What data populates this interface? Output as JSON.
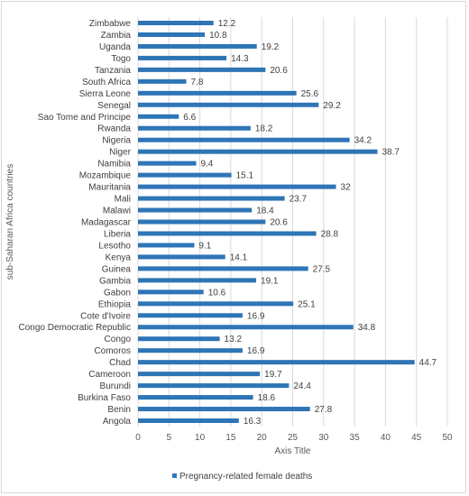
{
  "chart_data": {
    "type": "bar",
    "orientation": "horizontal",
    "categories": [
      "Zimbabwe",
      "Zambia",
      "Uganda",
      "Togo",
      "Tanzania",
      "South Africa",
      "Sierra Leone",
      "Senegal",
      "Sao Tome and Principe",
      "Rwanda",
      "Nigeria",
      "Niger",
      "Namibia",
      "Mozambique",
      "Mauritania",
      "Mali",
      "Malawi",
      "Madagascar",
      "Liberia",
      "Lesotho",
      "Kenya",
      "Guinea",
      "Gambia",
      "Gabon",
      "Ethiopia",
      "Cote d'Ivoire",
      "Congo Democratic Republic",
      "Congo",
      "Comoros",
      "Chad",
      "Cameroon",
      "Burundi",
      "Burkina Faso",
      "Benin",
      "Angola"
    ],
    "series": [
      {
        "name": "Pregnancy-related female deaths",
        "values": [
          12.2,
          10.8,
          19.2,
          14.3,
          20.6,
          7.8,
          25.6,
          29.2,
          6.6,
          18.2,
          34.2,
          38.7,
          9.4,
          15.1,
          32,
          23.7,
          18.4,
          20.6,
          28.8,
          9.1,
          14.1,
          27.5,
          19.1,
          10.6,
          25.1,
          16.9,
          34.8,
          13.2,
          16.9,
          44.7,
          19.7,
          24.4,
          18.6,
          27.8,
          16.3
        ],
        "color": "#2e75b6"
      }
    ],
    "xlabel": "Axis Title",
    "ylabel": "sub-Saharan Africa countries",
    "xlim": [
      0,
      50
    ],
    "xticks": [
      0,
      5,
      10,
      15,
      20,
      25,
      30,
      35,
      40,
      45,
      50
    ],
    "grid": true,
    "legend": "bottom",
    "data_labels": true
  }
}
